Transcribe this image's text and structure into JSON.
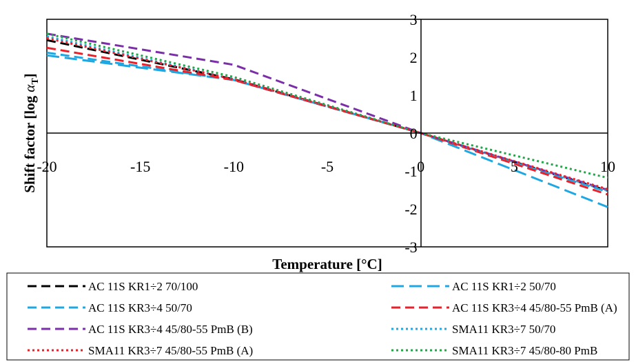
{
  "chart_data": {
    "type": "line",
    "xlabel": "Temperature [°C]",
    "ylabel_main": "Shift factor [log ",
    "ylabel_symbol": "α",
    "ylabel_sub": "T",
    "ylabel_close": "]",
    "xlim": [
      -20,
      10
    ],
    "ylim": [
      -3,
      3
    ],
    "x_ticks": [
      -20,
      -15,
      -10,
      -5,
      0,
      5,
      10
    ],
    "x_tick_labels": [
      "-20",
      "-15",
      "-10",
      "-5",
      "0",
      "5",
      "10"
    ],
    "y_ticks": [
      -3,
      -2,
      -1,
      0,
      1,
      2,
      3
    ],
    "y_tick_labels": [
      "-3",
      "-2",
      "-1",
      "0",
      "1",
      "2",
      "3"
    ],
    "legend_position": "bottom",
    "series": [
      {
        "name": "AC 11S KR1÷2 70/100",
        "color": "#000000",
        "dash": "dash",
        "x": [
          -20,
          -10,
          0,
          10
        ],
        "y": [
          2.45,
          1.42,
          0,
          -1.52
        ]
      },
      {
        "name": "AC 11S KR1÷2 50/70",
        "color": "#1ea7e1",
        "dash": "longdash",
        "x": [
          -20,
          -10,
          0,
          10
        ],
        "y": [
          2.05,
          1.4,
          0,
          -1.95
        ]
      },
      {
        "name": "AC 11S KR3÷4 50/70",
        "color": "#1ea7e1",
        "dash": "dash",
        "x": [
          -20,
          -10,
          0,
          10
        ],
        "y": [
          2.12,
          1.4,
          0,
          -1.55
        ]
      },
      {
        "name": "AC 11S KR3÷4 45/80-55 PmB (A)",
        "color": "#e8212b",
        "dash": "dash",
        "x": [
          -20,
          -10,
          0,
          10
        ],
        "y": [
          2.25,
          1.4,
          0,
          -1.62
        ]
      },
      {
        "name": "AC 11S KR3÷4 45/80-55 PmB (B)",
        "color": "#7a2fa8",
        "dash": "dash",
        "x": [
          -20,
          -10,
          0,
          10
        ],
        "y": [
          2.62,
          1.8,
          0,
          -1.5
        ]
      },
      {
        "name": "SMA11 KR3÷7 50/70",
        "color": "#1ea7e1",
        "dash": "dot",
        "x": [
          -20,
          -10,
          0,
          10
        ],
        "y": [
          2.55,
          1.42,
          0,
          -1.52
        ]
      },
      {
        "name": "SMA11 KR3÷7 45/80-55 PmB (A)",
        "color": "#e8212b",
        "dash": "dot",
        "x": [
          -20,
          -10,
          0,
          10
        ],
        "y": [
          2.5,
          1.42,
          0,
          -1.48
        ]
      },
      {
        "name": "SMA11 KR3÷7 45/80-80 PmB",
        "color": "#22a64a",
        "dash": "dot",
        "x": [
          -20,
          -10,
          0,
          10
        ],
        "y": [
          2.62,
          1.48,
          0,
          -1.18
        ]
      }
    ]
  }
}
